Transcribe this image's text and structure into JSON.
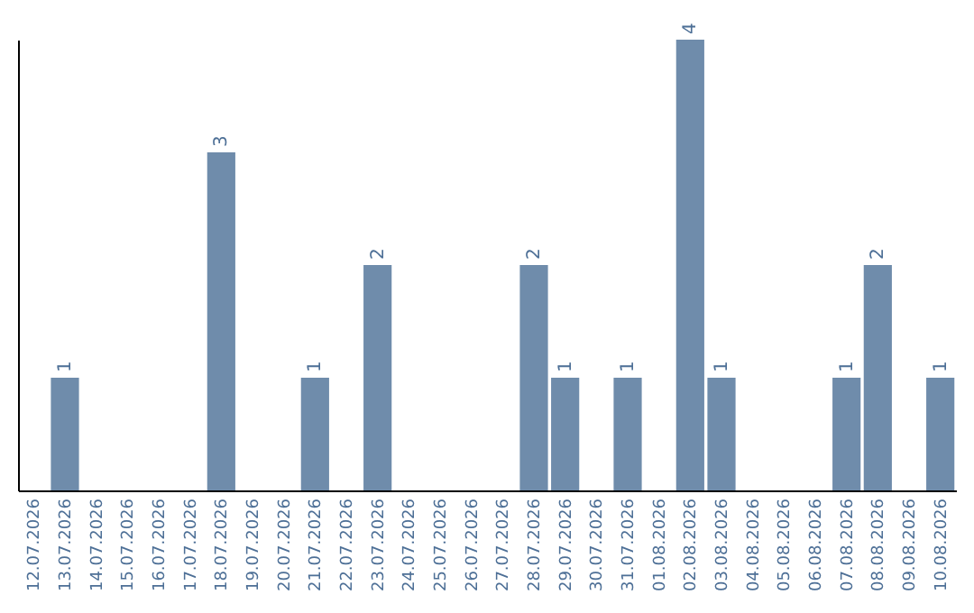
{
  "chart_data": {
    "type": "bar",
    "categories": [
      "12.07.2026",
      "13.07.2026",
      "14.07.2026",
      "15.07.2026",
      "16.07.2026",
      "17.07.2026",
      "18.07.2026",
      "19.07.2026",
      "20.07.2026",
      "21.07.2026",
      "22.07.2026",
      "23.07.2026",
      "24.07.2026",
      "25.07.2026",
      "26.07.2026",
      "27.07.2026",
      "28.07.2026",
      "29.07.2026",
      "30.07.2026",
      "31.07.2026",
      "01.08.2026",
      "02.08.2026",
      "03.08.2026",
      "04.08.2026",
      "05.08.2026",
      "06.08.2026",
      "07.08.2026",
      "08.08.2026",
      "09.08.2026",
      "10.08.2026"
    ],
    "values": [
      0,
      1,
      0,
      0,
      0,
      0,
      3,
      0,
      0,
      1,
      0,
      2,
      0,
      0,
      0,
      0,
      2,
      1,
      0,
      1,
      0,
      4,
      1,
      0,
      0,
      0,
      1,
      2,
      0,
      1
    ],
    "value_labels": [
      null,
      "1",
      null,
      null,
      null,
      null,
      "3",
      null,
      null,
      "1",
      null,
      "2",
      null,
      null,
      null,
      null,
      "2",
      "1",
      null,
      "1",
      null,
      "4",
      "1",
      null,
      null,
      null,
      "1",
      "2",
      null,
      "1"
    ],
    "color": "#6f8cab",
    "tick_labels": "x"
  }
}
